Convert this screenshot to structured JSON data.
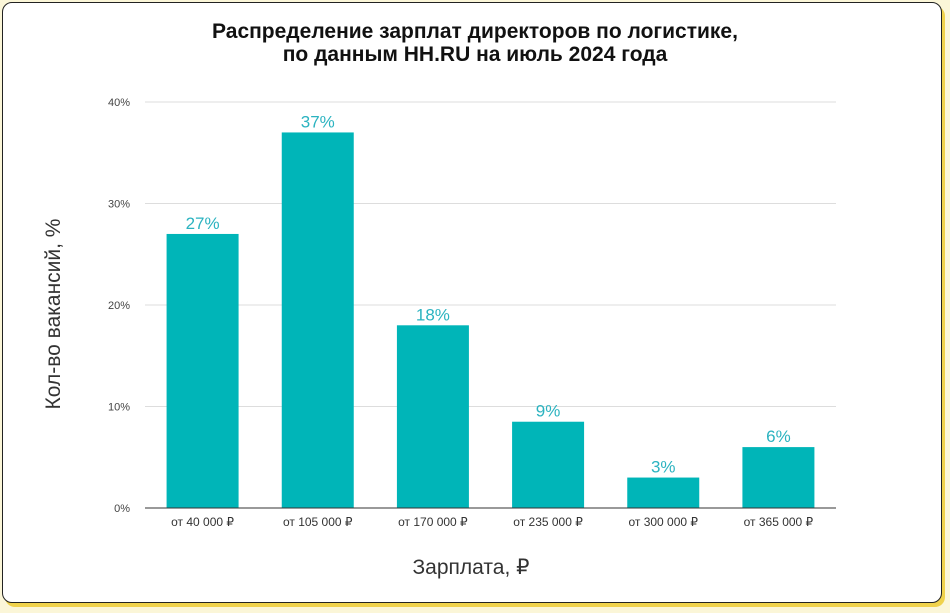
{
  "chart_data": {
    "type": "bar",
    "title_lines": [
      "Распределение зарплат директоров по логистике,",
      "по данным HH.RU на июль 2024 года"
    ],
    "xlabel": "Зарплата, ₽",
    "ylabel": "Кол-во вакансий, %",
    "categories": [
      "от 40 000 ₽",
      "от 105 000 ₽",
      "от 170 000 ₽",
      "от 235 000 ₽",
      "от 300 000 ₽",
      "от 365 000 ₽"
    ],
    "values": [
      27,
      37,
      18,
      8.5,
      3,
      6
    ],
    "data_labels": [
      "27%",
      "37%",
      "18%",
      "9%",
      "3%",
      "6%"
    ],
    "ylim": [
      0,
      40
    ],
    "yticks": [
      0,
      10,
      20,
      30,
      40
    ],
    "ytick_labels": [
      "0%",
      "10%",
      "20%",
      "30%",
      "40%"
    ],
    "grid": true,
    "legend": "none",
    "colors": {
      "bar": "#00b5b8",
      "data_label": "#2bb3c0",
      "grid": "#dddddd",
      "axis": "#333333"
    }
  }
}
